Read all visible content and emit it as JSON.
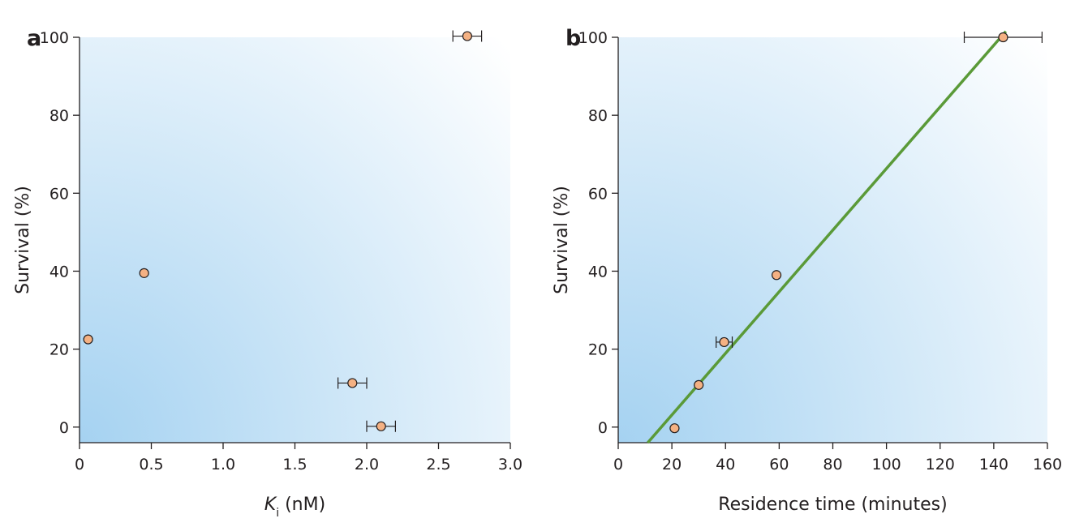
{
  "chart_data": [
    {
      "type": "scatter",
      "panel": "a",
      "xlabel_main": "K",
      "xlabel_sub": "i",
      "xlabel_rest": " (nM)",
      "ylabel": "Survival (%)",
      "xlim": [
        0,
        3.0
      ],
      "ylim": [
        -4,
        100
      ],
      "xticks": [
        "0",
        "0.5",
        "1.0",
        "1.5",
        "2.0",
        "2.5",
        "3.0"
      ],
      "xtick_values": [
        0,
        0.5,
        1.0,
        1.5,
        2.0,
        2.5,
        3.0
      ],
      "yticks": [
        "0",
        "20",
        "40",
        "60",
        "80",
        "100"
      ],
      "ytick_values": [
        0,
        20,
        40,
        60,
        80,
        100
      ],
      "points": [
        {
          "x": 0.06,
          "y": 22.5
        },
        {
          "x": 0.45,
          "y": 39.5
        },
        {
          "x": 1.9,
          "y": 11.3,
          "xerr": 0.1
        },
        {
          "x": 2.1,
          "y": 0.2,
          "xerr": 0.1
        },
        {
          "x": 2.7,
          "y": 100.3,
          "xerr": 0.1
        }
      ]
    },
    {
      "type": "scatter",
      "panel": "b",
      "xlabel": "Residence time (minutes)",
      "ylabel": "Survival (%)",
      "xlim": [
        0,
        160
      ],
      "ylim": [
        -4,
        100
      ],
      "xticks": [
        "0",
        "20",
        "40",
        "60",
        "80",
        "100",
        "120",
        "140",
        "160"
      ],
      "xtick_values": [
        0,
        20,
        40,
        60,
        80,
        100,
        120,
        140,
        160
      ],
      "yticks": [
        "0",
        "20",
        "40",
        "60",
        "80",
        "100"
      ],
      "ytick_values": [
        0,
        20,
        40,
        60,
        80,
        100
      ],
      "points": [
        {
          "x": 21,
          "y": -0.3
        },
        {
          "x": 30,
          "y": 10.8
        },
        {
          "x": 39.5,
          "y": 21.8,
          "xerr": 3
        },
        {
          "x": 59,
          "y": 39
        },
        {
          "x": 143.5,
          "y": 100,
          "xerr": 14.5
        }
      ],
      "fit_line": {
        "x": [
          11,
          144.5
        ],
        "y": [
          -4,
          101.5
        ],
        "color": "#5a9a38"
      }
    }
  ],
  "colors": {
    "background_dark": "#a5d2f1",
    "background_light": "#ffffff",
    "marker_fill": "#f4b183",
    "marker_stroke": "#231f20",
    "fit_line": "#5a9a38"
  }
}
